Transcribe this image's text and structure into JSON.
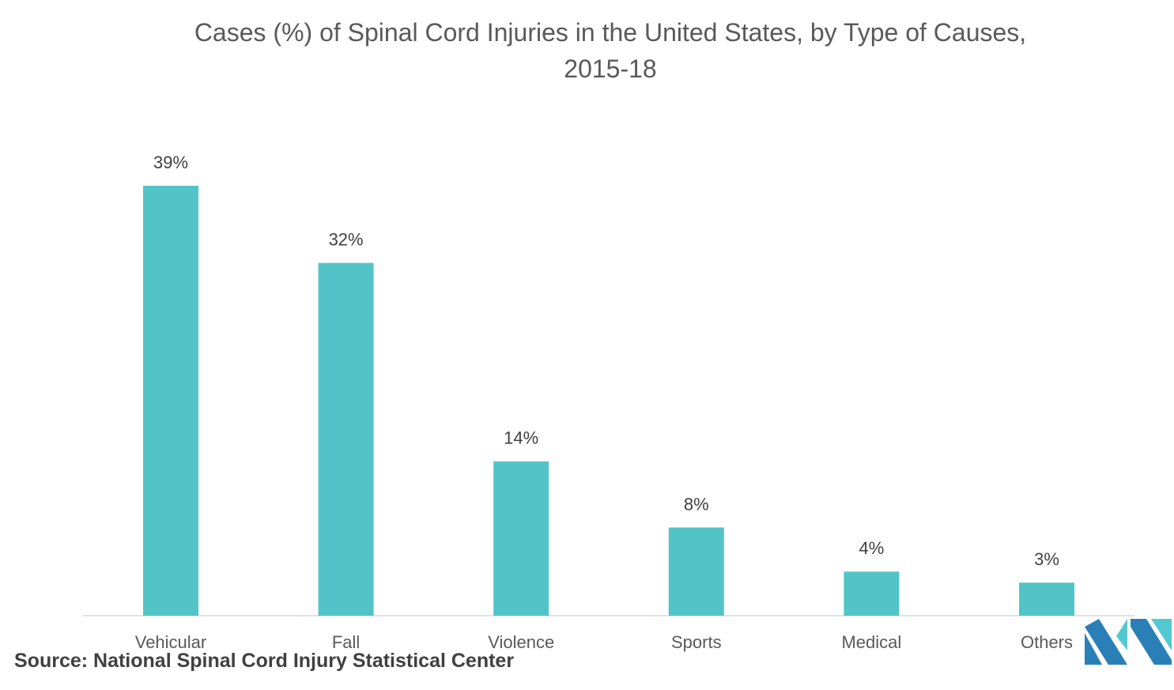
{
  "title": "Cases (%) of Spinal Cord Injuries in the United States, by Type of Causes, 2015-18",
  "source": "Source: National Spinal Cord Injury Statistical Center",
  "colors": {
    "bar": "#52c4c8",
    "axis": "#d9d9d9",
    "label_text": "#404040",
    "tick_text": "#595959",
    "logo_dark": "#2a7fb7",
    "logo_light": "#52c8d0"
  },
  "logo": {
    "icon": "company-logo-icon"
  },
  "chart_data": {
    "type": "bar",
    "title": "Cases (%) of Spinal Cord Injuries in the United States, by Type of Causes, 2015-18",
    "categories": [
      "Vehicular",
      "Fall",
      "Violence",
      "Sports",
      "Medical",
      "Others"
    ],
    "values": [
      39,
      32,
      14,
      8,
      4,
      3
    ],
    "data_labels": [
      "39%",
      "32%",
      "14%",
      "8%",
      "4%",
      "3%"
    ],
    "xlabel": "",
    "ylabel": "",
    "ylim": [
      0,
      39
    ],
    "grid": false,
    "legend": "none"
  }
}
